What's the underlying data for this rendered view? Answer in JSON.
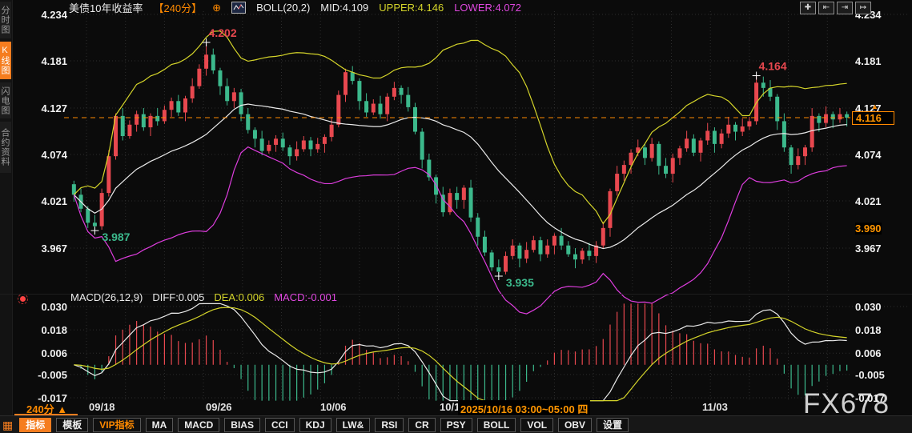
{
  "header": {
    "title": "美债10年收益率",
    "timeframe": "【240分】",
    "plus_icon": "⊕",
    "boll_label": "BOLL(20,2)",
    "mid": "MID:4.109",
    "upper": "UPPER:4.146",
    "lower": "LOWER:4.072",
    "tool_glyphs": [
      "✚",
      "⇤",
      "⇥",
      "↦"
    ]
  },
  "sidebar": {
    "tabs": [
      {
        "label": "分时图",
        "active": false
      },
      {
        "label": "K线图",
        "active": true
      },
      {
        "label": "闪电图",
        "active": false
      },
      {
        "label": "合约资料",
        "active": false
      }
    ]
  },
  "main_chart": {
    "y_left": [
      "4.234",
      "4.181",
      "4.127",
      "4.074",
      "4.021",
      "3.967"
    ],
    "y_right": [
      "4.234",
      "4.181",
      "4.127",
      "4.074",
      "4.021",
      "3.967"
    ],
    "current_price_label": "4.116",
    "current_price_arrow": "▲",
    "settle_label": "3.990"
  },
  "macd_pane": {
    "name": "MACD(26,12,9)",
    "diff": "DIFF:0.005",
    "dea": "DEA:0.006",
    "macd": "MACD:-0.001",
    "y_left": [
      "0.030",
      "0.018",
      "0.006",
      "-0.005",
      "-0.017"
    ],
    "y_right": [
      "0.030",
      "0.018",
      "0.006",
      "-0.005",
      "-0.017"
    ]
  },
  "x_axis": {
    "selector": "240分 ▲",
    "labels": [
      "09/18",
      "09/26",
      "10/06",
      "10/1",
      "24",
      "11/03"
    ],
    "tooltip": "2025/10/16 03:00~05:00 四"
  },
  "toolbar": {
    "grid_icon": "▦",
    "items": [
      {
        "label": "指标"
      },
      {
        "label": "模板"
      },
      {
        "label": "VIP指标"
      },
      {
        "label": "MA"
      },
      {
        "label": "MACD"
      },
      {
        "label": "BIAS"
      },
      {
        "label": "CCI"
      },
      {
        "label": "KDJ"
      },
      {
        "label": "LW&"
      },
      {
        "label": "RSI"
      },
      {
        "label": "CR"
      },
      {
        "label": "PSY"
      },
      {
        "label": "BOLL"
      },
      {
        "label": "VOL"
      },
      {
        "label": "OBV"
      },
      {
        "label": "设置"
      }
    ]
  },
  "watermark": "FX678",
  "colors": {
    "accent": "#ff8a00",
    "up_red": "#e8484f",
    "down_green": "#3cb98c",
    "boll_upper": "#d4d42a",
    "boll_mid": "#eaeaea",
    "boll_lower": "#dd3ddd",
    "macd_diff": "#eaeaea",
    "macd_dea": "#d4d42a",
    "grid": "#2d2d2d"
  },
  "chart_data": {
    "type": "candlestick+macd",
    "symbol": "美债10年收益率",
    "period": "240分",
    "boll_params": {
      "period": 20,
      "k": 2,
      "mid": 4.109,
      "upper": 4.146,
      "lower": 4.072
    },
    "macd_params": {
      "fast": 12,
      "slow": 26,
      "signal": 9,
      "diff": 0.005,
      "dea": 0.006,
      "macd": -0.001
    },
    "price_axis": [
      4.234,
      4.181,
      4.127,
      4.074,
      4.021,
      3.967
    ],
    "macd_axis": [
      0.03,
      0.018,
      0.006,
      -0.005,
      -0.017
    ],
    "current_price": 4.116,
    "settle_price": 3.99,
    "markers": [
      {
        "index": 3,
        "price": 3.987,
        "type": "low",
        "label": "3.987"
      },
      {
        "index": 19,
        "price": 4.202,
        "type": "high",
        "label": "4.202"
      },
      {
        "index": 61,
        "price": 3.935,
        "type": "low",
        "label": "3.935"
      },
      {
        "index": 98,
        "price": 4.164,
        "type": "high",
        "label": "4.164"
      }
    ],
    "candles": [
      [
        4.04,
        4.044,
        4.02,
        4.028
      ],
      [
        4.028,
        4.035,
        4.008,
        4.012
      ],
      [
        4.012,
        4.015,
        3.99,
        3.996
      ],
      [
        3.996,
        4.005,
        3.987,
        3.992
      ],
      [
        3.992,
        4.035,
        3.988,
        4.03
      ],
      [
        4.03,
        4.079,
        4.026,
        4.072
      ],
      [
        4.072,
        4.121,
        4.068,
        4.118
      ],
      [
        4.118,
        4.127,
        4.09,
        4.095
      ],
      [
        4.095,
        4.113,
        4.092,
        4.108
      ],
      [
        4.108,
        4.124,
        4.1,
        4.12
      ],
      [
        4.12,
        4.127,
        4.101,
        4.105
      ],
      [
        4.105,
        4.121,
        4.095,
        4.118
      ],
      [
        4.118,
        4.127,
        4.107,
        4.112
      ],
      [
        4.112,
        4.13,
        4.109,
        4.125
      ],
      [
        4.125,
        4.139,
        4.117,
        4.135
      ],
      [
        4.135,
        4.142,
        4.118,
        4.122
      ],
      [
        4.122,
        4.141,
        4.112,
        4.138
      ],
      [
        4.138,
        4.161,
        4.133,
        4.152
      ],
      [
        4.152,
        4.177,
        4.149,
        4.172
      ],
      [
        4.172,
        4.202,
        4.164,
        4.188
      ],
      [
        4.188,
        4.195,
        4.166,
        4.17
      ],
      [
        4.17,
        4.173,
        4.142,
        4.152
      ],
      [
        4.152,
        4.161,
        4.13,
        4.135
      ],
      [
        4.135,
        4.15,
        4.127,
        4.145
      ],
      [
        4.145,
        4.149,
        4.112,
        4.12
      ],
      [
        4.12,
        4.127,
        4.098,
        4.102
      ],
      [
        4.102,
        4.105,
        4.082,
        4.092
      ],
      [
        4.092,
        4.101,
        4.073,
        4.078
      ],
      [
        4.078,
        4.09,
        4.075,
        4.085
      ],
      [
        4.085,
        4.096,
        4.077,
        4.092
      ],
      [
        4.092,
        4.099,
        4.078,
        4.082
      ],
      [
        4.082,
        4.085,
        4.062,
        4.072
      ],
      [
        4.072,
        4.089,
        4.067,
        4.08
      ],
      [
        4.08,
        4.095,
        4.077,
        4.09
      ],
      [
        4.09,
        4.094,
        4.072,
        4.08
      ],
      [
        4.08,
        4.093,
        4.076,
        4.086
      ],
      [
        4.086,
        4.097,
        4.076,
        4.094
      ],
      [
        4.094,
        4.117,
        4.089,
        4.108
      ],
      [
        4.108,
        4.147,
        4.105,
        4.142
      ],
      [
        4.142,
        4.172,
        4.134,
        4.168
      ],
      [
        4.168,
        4.175,
        4.154,
        4.158
      ],
      [
        4.158,
        4.161,
        4.125,
        4.135
      ],
      [
        4.135,
        4.144,
        4.117,
        4.122
      ],
      [
        4.122,
        4.137,
        4.119,
        4.132
      ],
      [
        4.132,
        4.141,
        4.115,
        4.12
      ],
      [
        4.12,
        4.144,
        4.112,
        4.14
      ],
      [
        4.14,
        4.157,
        4.136,
        4.15
      ],
      [
        4.15,
        4.153,
        4.132,
        4.142
      ],
      [
        4.142,
        4.151,
        4.123,
        4.128
      ],
      [
        4.128,
        4.133,
        4.097,
        4.1
      ],
      [
        4.1,
        4.104,
        4.058,
        4.068
      ],
      [
        4.068,
        4.075,
        4.044,
        4.048
      ],
      [
        4.048,
        4.051,
        4.018,
        4.028
      ],
      [
        4.028,
        4.037,
        4.003,
        4.008
      ],
      [
        4.008,
        4.035,
        4.005,
        4.03
      ],
      [
        4.03,
        4.037,
        4.012,
        4.022
      ],
      [
        4.022,
        4.039,
        4.012,
        4.036
      ],
      [
        4.036,
        4.045,
        3.997,
        4.002
      ],
      [
        4.002,
        4.007,
        3.97,
        3.98
      ],
      [
        3.98,
        3.987,
        3.958,
        3.962
      ],
      [
        3.962,
        3.965,
        3.941,
        3.945
      ],
      [
        3.945,
        3.954,
        3.935,
        3.94
      ],
      [
        3.94,
        3.963,
        3.937,
        3.958
      ],
      [
        3.958,
        3.977,
        3.954,
        3.97
      ],
      [
        3.97,
        3.973,
        3.945,
        3.955
      ],
      [
        3.955,
        3.974,
        3.95,
        3.965
      ],
      [
        3.965,
        3.981,
        3.962,
        3.976
      ],
      [
        3.976,
        3.98,
        3.952,
        3.96
      ],
      [
        3.96,
        3.977,
        3.956,
        3.97
      ],
      [
        3.97,
        3.984,
        3.96,
        3.981
      ],
      [
        3.981,
        3.99,
        3.965,
        3.97
      ],
      [
        3.97,
        3.975,
        3.957,
        3.96
      ],
      [
        3.96,
        3.967,
        3.944,
        3.954
      ],
      [
        3.954,
        3.967,
        3.949,
        3.964
      ],
      [
        3.964,
        3.973,
        3.953,
        3.958
      ],
      [
        3.958,
        3.975,
        3.95,
        3.97
      ],
      [
        3.97,
        3.997,
        3.966,
        3.99
      ],
      [
        3.99,
        4.035,
        3.98,
        4.032
      ],
      [
        4.032,
        4.061,
        4.027,
        4.052
      ],
      [
        4.052,
        4.067,
        4.044,
        4.062
      ],
      [
        4.062,
        4.08,
        4.052,
        4.076
      ],
      [
        4.076,
        4.091,
        4.072,
        4.082
      ],
      [
        4.082,
        4.087,
        4.062,
        4.07
      ],
      [
        4.07,
        4.093,
        4.066,
        4.086
      ],
      [
        4.086,
        4.089,
        4.051,
        4.061
      ],
      [
        4.061,
        4.07,
        4.047,
        4.052
      ],
      [
        4.052,
        4.075,
        4.042,
        4.07
      ],
      [
        4.07,
        4.084,
        4.062,
        4.081
      ],
      [
        4.081,
        4.101,
        4.077,
        4.092
      ],
      [
        4.092,
        4.097,
        4.072,
        4.076
      ],
      [
        4.076,
        4.093,
        4.066,
        4.09
      ],
      [
        4.09,
        4.11,
        4.085,
        4.101
      ],
      [
        4.101,
        4.105,
        4.076,
        4.086
      ],
      [
        4.086,
        4.103,
        4.081,
        4.098
      ],
      [
        4.098,
        4.117,
        4.093,
        4.108
      ],
      [
        4.108,
        4.111,
        4.09,
        4.1
      ],
      [
        4.1,
        4.115,
        4.095,
        4.106
      ],
      [
        4.106,
        4.117,
        4.102,
        4.112
      ],
      [
        4.112,
        4.164,
        4.108,
        4.156
      ],
      [
        4.156,
        4.163,
        4.14,
        4.15
      ],
      [
        4.15,
        4.159,
        4.135,
        4.14
      ],
      [
        4.14,
        4.143,
        4.102,
        4.112
      ],
      [
        4.112,
        4.121,
        4.077,
        4.082
      ],
      [
        4.082,
        4.085,
        4.052,
        4.062
      ],
      [
        4.062,
        4.081,
        4.057,
        4.072
      ],
      [
        4.072,
        4.085,
        4.062,
        4.082
      ],
      [
        4.082,
        4.127,
        4.077,
        4.118
      ],
      [
        4.118,
        4.121,
        4.1,
        4.11
      ],
      [
        4.11,
        4.129,
        4.105,
        4.12
      ],
      [
        4.12,
        4.123,
        4.104,
        4.114
      ],
      [
        4.114,
        4.127,
        4.11,
        4.12
      ],
      [
        4.12,
        4.123,
        4.106,
        4.116
      ]
    ]
  }
}
